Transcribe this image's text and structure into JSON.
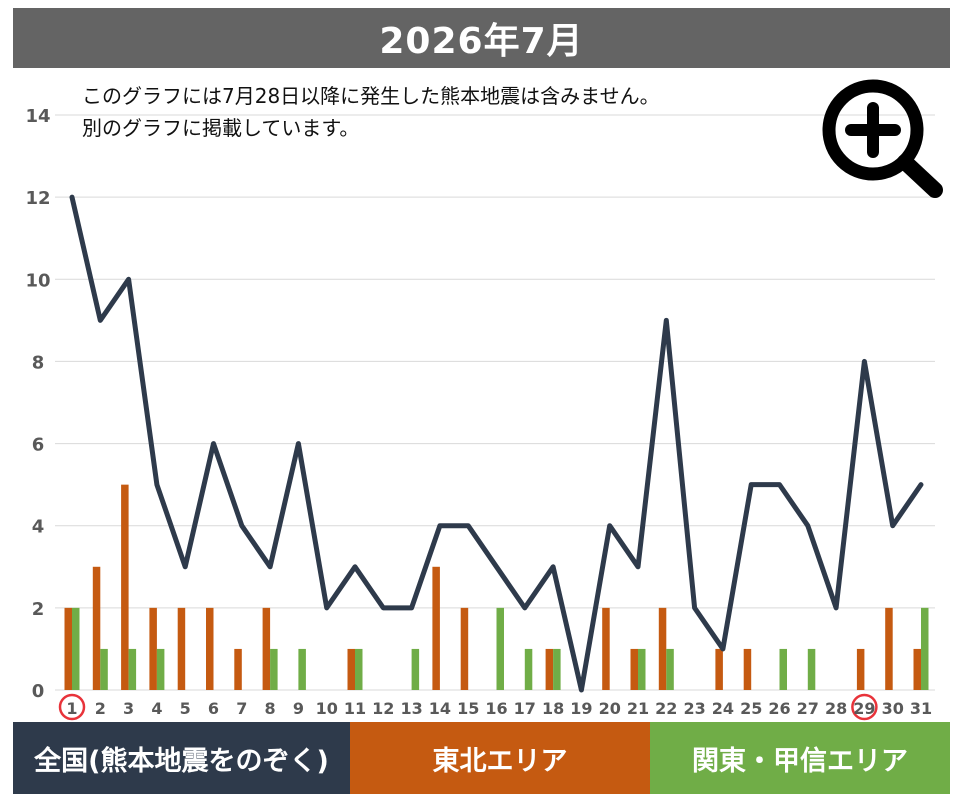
{
  "title": "2026年7月",
  "notes": [
    "このグラフには7月28日以降に発生した熊本地震は含みません。",
    "別のグラフに掲載しています。"
  ],
  "legend": {
    "national": "全国(熊本地震をのぞく)",
    "tohoku": "東北エリア",
    "kanto": "関東・甲信エリア"
  },
  "colors": {
    "title_bg": "#646464",
    "national": "#2e3a4b",
    "tohoku": "#c55a11",
    "kanto": "#70ad47",
    "highlight_circle": "#e8333a"
  },
  "icons": {
    "zoom": "zoom-in-icon"
  },
  "chart_data": {
    "type": "bar",
    "categories": [
      "1",
      "2",
      "3",
      "4",
      "5",
      "6",
      "7",
      "8",
      "9",
      "10",
      "11",
      "12",
      "13",
      "14",
      "15",
      "16",
      "17",
      "18",
      "19",
      "20",
      "21",
      "22",
      "23",
      "24",
      "25",
      "26",
      "27",
      "28",
      "29",
      "30",
      "31"
    ],
    "highlighted_categories": [
      "1",
      "29"
    ],
    "ylim": [
      0,
      14
    ],
    "yticks": [
      0,
      2,
      4,
      6,
      8,
      10,
      12,
      14
    ],
    "grid": true,
    "series": [
      {
        "name": "全国(熊本地震をのぞく)",
        "type": "line",
        "color": "#2e3a4b",
        "values": [
          12,
          9,
          10,
          5,
          3,
          6,
          4,
          3,
          6,
          2,
          3,
          2,
          2,
          4,
          4,
          3,
          2,
          3,
          0,
          4,
          3,
          9,
          2,
          1,
          5,
          5,
          4,
          2,
          8,
          4,
          5
        ]
      },
      {
        "name": "東北エリア",
        "type": "bar",
        "color": "#c55a11",
        "values": [
          2,
          3,
          5,
          2,
          2,
          2,
          1,
          2,
          0,
          0,
          1,
          0,
          0,
          3,
          2,
          0,
          0,
          1,
          0,
          2,
          1,
          2,
          0,
          1,
          1,
          0,
          0,
          0,
          1,
          2,
          1
        ]
      },
      {
        "name": "関東・甲信エリア",
        "type": "bar",
        "color": "#70ad47",
        "values": [
          2,
          1,
          1,
          1,
          0,
          0,
          0,
          1,
          1,
          0,
          1,
          0,
          1,
          0,
          0,
          2,
          1,
          1,
          0,
          0,
          1,
          1,
          0,
          0,
          0,
          1,
          1,
          0,
          0,
          0,
          2
        ]
      }
    ]
  }
}
